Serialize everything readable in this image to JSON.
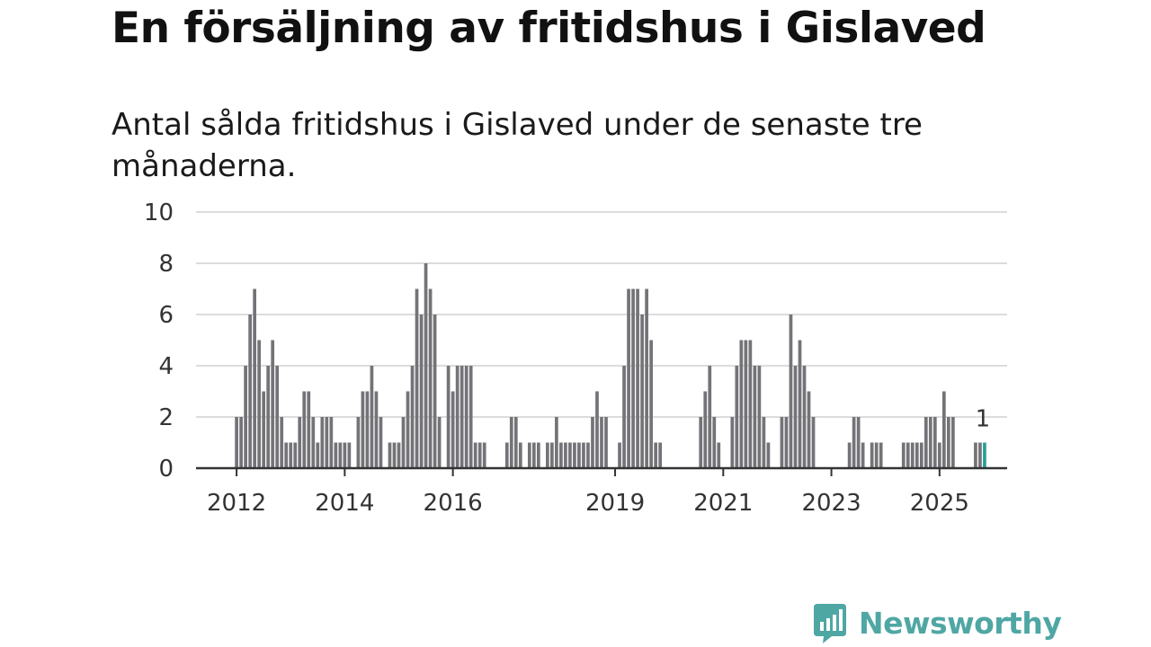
{
  "title": "En försäljning av fritidshus i Gislaved",
  "subtitle": "Antal sålda fritidshus i Gislaved under de senaste tre månaderna.",
  "brand": {
    "name": "Newsworthy",
    "color": "#4fa7a4",
    "icon": "newsworthy-chart-bubble-icon"
  },
  "chart_data": {
    "type": "bar",
    "ylim": [
      0,
      10
    ],
    "yticks": [
      0,
      2,
      4,
      6,
      8,
      10
    ],
    "xlim": [
      2011.25,
      2026.25
    ],
    "xticks": [
      2012,
      2014,
      2016,
      2019,
      2021,
      2023,
      2025
    ],
    "grid": true,
    "bar_color": "#737378",
    "highlight_color": "#2a9d97",
    "annotation": {
      "text": "1"
    },
    "series": [
      {
        "x_start": 2012,
        "step_months": 1,
        "values": [
          2,
          2,
          4,
          6,
          7,
          5,
          3,
          4,
          5,
          4,
          2,
          1,
          1,
          1,
          2,
          3,
          3,
          2,
          1,
          2,
          2,
          2,
          1,
          1,
          1,
          1,
          0,
          2,
          3,
          3,
          4,
          3,
          2,
          0,
          1,
          1,
          1,
          2,
          3,
          4,
          7,
          6,
          8,
          7,
          6,
          2,
          0,
          4,
          3,
          4,
          4,
          4,
          4,
          1,
          1,
          1,
          0,
          0,
          0,
          0,
          1,
          2,
          2,
          1,
          0,
          1,
          1,
          1,
          0,
          1,
          1,
          2,
          1,
          1,
          1,
          1,
          1,
          1,
          1,
          2,
          3,
          2,
          2,
          0,
          0,
          1,
          4,
          7,
          7,
          7,
          6,
          7,
          5,
          1,
          1,
          0,
          0,
          0,
          0,
          0,
          0,
          0,
          0,
          2,
          3,
          4,
          2,
          1,
          0,
          0,
          2,
          4,
          5,
          5,
          5,
          4,
          4,
          2,
          1,
          0,
          0,
          2,
          2,
          6,
          4,
          5,
          4,
          3,
          2,
          0,
          0,
          0,
          0,
          0,
          0,
          0,
          1,
          2,
          2,
          1,
          0,
          1,
          1,
          1,
          0,
          0,
          0,
          0,
          1,
          1,
          1,
          1,
          1,
          2,
          2,
          2,
          1,
          3,
          2,
          2,
          0,
          0,
          0,
          0,
          1,
          1,
          1
        ]
      }
    ]
  }
}
